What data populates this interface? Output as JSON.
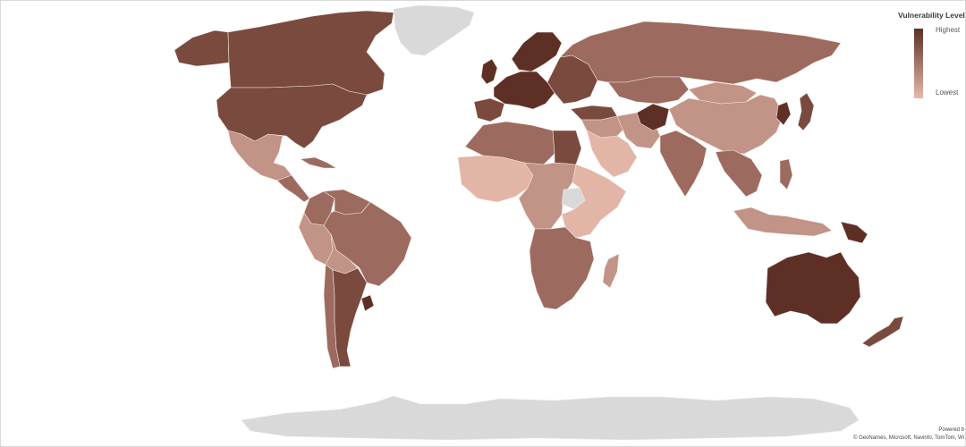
{
  "legend": {
    "title": "Vulnerability Level",
    "high_label": "Highest",
    "low_label": "Lowest",
    "high_color": "#5e3025",
    "low_color": "#e8b9a9"
  },
  "attribution": {
    "powered_by": "Powered b",
    "credits": "© GeoNames, Microsoft, Navinfo, TomTom, Wi"
  },
  "colors": {
    "no_data": "#d9d9d9",
    "highest": "#5e3025",
    "high": "#7a4a3e",
    "medium": "#9c6a5e",
    "low": "#c29387",
    "lowest": "#e3b5a6"
  },
  "regions": [
    {
      "name": "Greenland",
      "level": "no_data"
    },
    {
      "name": "Canada",
      "level": "high"
    },
    {
      "name": "United States",
      "level": "high"
    },
    {
      "name": "Alaska",
      "level": "high"
    },
    {
      "name": "Mexico",
      "level": "low"
    },
    {
      "name": "Central America",
      "level": "medium"
    },
    {
      "name": "Cuba",
      "level": "medium"
    },
    {
      "name": "Colombia",
      "level": "medium"
    },
    {
      "name": "Venezuela",
      "level": "medium"
    },
    {
      "name": "Peru",
      "level": "low"
    },
    {
      "name": "Brazil",
      "level": "medium"
    },
    {
      "name": "Bolivia",
      "level": "low"
    },
    {
      "name": "Argentina",
      "level": "high"
    },
    {
      "name": "Chile",
      "level": "medium"
    },
    {
      "name": "Uruguay",
      "level": "highest"
    },
    {
      "name": "Western Europe",
      "level": "highest"
    },
    {
      "name": "Spain",
      "level": "high"
    },
    {
      "name": "United Kingdom",
      "level": "highest"
    },
    {
      "name": "Scandinavia",
      "level": "highest"
    },
    {
      "name": "Eastern Europe",
      "level": "high"
    },
    {
      "name": "Russia",
      "level": "medium"
    },
    {
      "name": "Kazakhstan",
      "level": "medium"
    },
    {
      "name": "Turkey",
      "level": "high"
    },
    {
      "name": "Middle East",
      "level": "low"
    },
    {
      "name": "Arabian Peninsula",
      "level": "lowest"
    },
    {
      "name": "Iran",
      "level": "low"
    },
    {
      "name": "Afghanistan",
      "level": "highest"
    },
    {
      "name": "India",
      "level": "medium"
    },
    {
      "name": "China",
      "level": "low"
    },
    {
      "name": "Mongolia",
      "level": "low"
    },
    {
      "name": "Korea",
      "level": "highest"
    },
    {
      "name": "Japan",
      "level": "high"
    },
    {
      "name": "Southeast Asia",
      "level": "medium"
    },
    {
      "name": "Indonesia",
      "level": "low"
    },
    {
      "name": "Philippines",
      "level": "medium"
    },
    {
      "name": "Papua New Guinea",
      "level": "highest"
    },
    {
      "name": "North Africa",
      "level": "medium"
    },
    {
      "name": "Egypt",
      "level": "high"
    },
    {
      "name": "West Africa",
      "level": "lowest"
    },
    {
      "name": "Central Africa",
      "level": "low"
    },
    {
      "name": "South Sudan",
      "level": "no_data"
    },
    {
      "name": "East Africa",
      "level": "lowest"
    },
    {
      "name": "Southern Africa",
      "level": "medium"
    },
    {
      "name": "Madagascar",
      "level": "low"
    },
    {
      "name": "Australia",
      "level": "highest"
    },
    {
      "name": "New Zealand",
      "level": "high"
    },
    {
      "name": "Antarctica",
      "level": "no_data"
    }
  ]
}
